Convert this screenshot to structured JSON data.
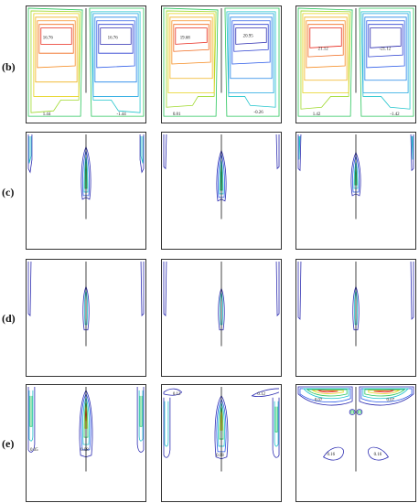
{
  "figure": {
    "rows": [
      {
        "label": "(b)",
        "panels": [
          {
            "contour_labels": [
              "16.76",
              "16.76",
              "1.44",
              "-1.44"
            ]
          },
          {
            "contour_labels": [
              "19.68",
              "20.95",
              "0.81",
              "-0.26"
            ]
          },
          {
            "contour_labels": [
              "21.12",
              "-21.12",
              "1.42",
              "-1.42"
            ]
          }
        ]
      },
      {
        "label": "(c)",
        "panels": [
          {
            "contour_labels": []
          },
          {
            "contour_labels": []
          },
          {
            "contour_labels": []
          }
        ]
      },
      {
        "label": "(d)",
        "panels": [
          {
            "contour_labels": []
          },
          {
            "contour_labels": []
          },
          {
            "contour_labels": []
          }
        ]
      },
      {
        "label": "(e)",
        "panels": [
          {
            "contour_labels": [
              "0.05",
              "0.08"
            ]
          },
          {
            "contour_labels": [
              "0.12",
              "0.12",
              "0.08"
            ]
          },
          {
            "contour_labels": [
              "0.07",
              "0.07",
              "0.16",
              "0.16"
            ]
          }
        ]
      }
    ],
    "colors": {
      "red": "#e8281c",
      "orange": "#f58a1f",
      "yellow": "#e6d21d",
      "lime": "#9ed92a",
      "green": "#27c55a",
      "cyan": "#1fc4cc",
      "blue": "#2a5ae8",
      "navy": "#2a2ab0"
    }
  }
}
